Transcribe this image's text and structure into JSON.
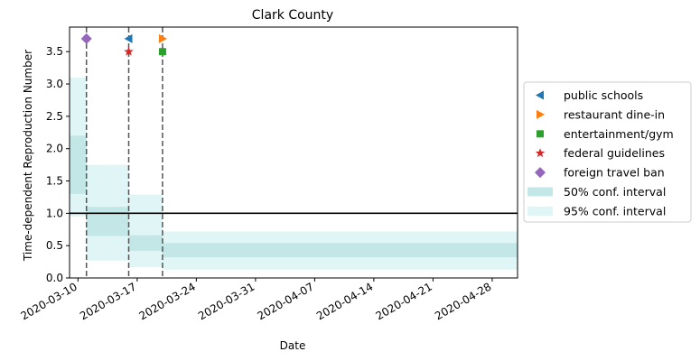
{
  "chart_data": {
    "type": "line",
    "title": "Clark County",
    "xlabel": "Date",
    "ylabel": "Time-dependent Reproduction Number",
    "x_tick_labels": [
      "2020-03-10",
      "2020-03-17",
      "2020-03-24",
      "2020-03-31",
      "2020-04-07",
      "2020-04-14",
      "2020-04-21",
      "2020-04-28"
    ],
    "y_tick_labels": [
      "0.0",
      "0.5",
      "1.0",
      "1.5",
      "2.0",
      "2.5",
      "3.0",
      "3.5"
    ],
    "xlim": [
      "2020-03-09",
      "2020-05-01"
    ],
    "ylim": [
      0,
      3.88
    ],
    "reference_line_y": 1.0,
    "intervention_dates": [
      "2020-03-11",
      "2020-03-16",
      "2020-03-20"
    ],
    "intervals": [
      {
        "start": "2020-03-09",
        "end": "2020-03-11",
        "ci50": [
          1.3,
          2.2
        ],
        "ci95": [
          0.95,
          3.1
        ]
      },
      {
        "start": "2020-03-11",
        "end": "2020-03-16",
        "ci50": [
          0.65,
          1.1
        ],
        "ci95": [
          0.27,
          1.75
        ]
      },
      {
        "start": "2020-03-16",
        "end": "2020-03-20",
        "ci50": [
          0.42,
          0.66
        ],
        "ci95": [
          0.17,
          1.29
        ]
      },
      {
        "start": "2020-03-20",
        "end": "2020-05-01",
        "ci50": [
          0.32,
          0.54
        ],
        "ci95": [
          0.13,
          0.72
        ]
      }
    ],
    "markers": [
      {
        "name": "public schools",
        "date": "2020-03-16",
        "y": 3.7,
        "color": "#1f77b4",
        "shape": "triangle-left"
      },
      {
        "name": "restaurant dine-in",
        "date": "2020-03-20",
        "y": 3.7,
        "color": "#ff7f0e",
        "shape": "triangle-right"
      },
      {
        "name": "entertainment/gym",
        "date": "2020-03-20",
        "y": 3.5,
        "color": "#2ca02c",
        "shape": "square"
      },
      {
        "name": "federal guidelines",
        "date": "2020-03-16",
        "y": 3.5,
        "color": "#d62728",
        "shape": "star"
      },
      {
        "name": "foreign travel ban",
        "date": "2020-03-11",
        "y": 3.7,
        "color": "#9467bd",
        "shape": "diamond"
      }
    ],
    "legend": {
      "placement": "right",
      "entries": [
        "public schools",
        "restaurant dine-in",
        "entertainment/gym",
        "federal guidelines",
        "foreign travel ban",
        "50% conf. interval",
        "95% conf. interval"
      ]
    },
    "band_colors": {
      "ci50": "#c3e7e7",
      "ci95": "#e0f5f5"
    }
  }
}
